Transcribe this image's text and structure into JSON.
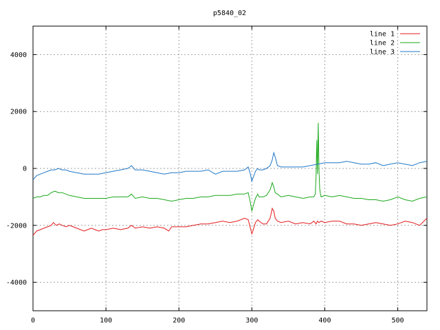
{
  "chart_data": {
    "type": "line",
    "title": "p5840_02",
    "xlabel": "",
    "ylabel": "",
    "xlim": [
      0,
      540
    ],
    "ylim": [
      -5000,
      5000
    ],
    "x_ticks": [
      0,
      100,
      200,
      300,
      400,
      500
    ],
    "y_ticks": [
      -4000,
      -2000,
      0,
      2000,
      4000
    ],
    "grid": true,
    "legend_position": "top-right",
    "colors": {
      "line 1": "#e41a1c",
      "line 2": "#1aa81a",
      "line 3": "#1f77c8"
    },
    "series": [
      {
        "name": "line 1",
        "color": "#e41a1c",
        "x": [
          0,
          5,
          10,
          15,
          20,
          25,
          28,
          32,
          36,
          40,
          45,
          50,
          55,
          60,
          65,
          70,
          75,
          80,
          85,
          90,
          95,
          100,
          110,
          120,
          130,
          135,
          140,
          150,
          160,
          170,
          180,
          186,
          190,
          200,
          210,
          220,
          230,
          240,
          250,
          260,
          270,
          280,
          290,
          295,
          298,
          300,
          302,
          305,
          308,
          310,
          315,
          320,
          325,
          328,
          330,
          332,
          335,
          340,
          350,
          360,
          370,
          380,
          385,
          388,
          390,
          392,
          395,
          400,
          410,
          420,
          430,
          440,
          450,
          460,
          470,
          480,
          490,
          500,
          510,
          520,
          530,
          540
        ],
        "y": [
          -2350,
          -2200,
          -2150,
          -2100,
          -2050,
          -2000,
          -1900,
          -2000,
          -1950,
          -2000,
          -2050,
          -2000,
          -2050,
          -2100,
          -2150,
          -2200,
          -2150,
          -2100,
          -2150,
          -2200,
          -2150,
          -2150,
          -2100,
          -2150,
          -2100,
          -2000,
          -2100,
          -2050,
          -2100,
          -2050,
          -2100,
          -2200,
          -2050,
          -2050,
          -2050,
          -2000,
          -1950,
          -1950,
          -1900,
          -1850,
          -1900,
          -1850,
          -1750,
          -1800,
          -2100,
          -2300,
          -2150,
          -1900,
          -1800,
          -1850,
          -1950,
          -1950,
          -1750,
          -1400,
          -1500,
          -1750,
          -1850,
          -1900,
          -1850,
          -1950,
          -1900,
          -1950,
          -1850,
          -1950,
          -1850,
          -1900,
          -1850,
          -1900,
          -1850,
          -1850,
          -1950,
          -1950,
          -2000,
          -1950,
          -1900,
          -1950,
          -2000,
          -1950,
          -1850,
          -1900,
          -2000,
          -1750
        ]
      },
      {
        "name": "line 2",
        "color": "#1aa81a",
        "x": [
          0,
          5,
          10,
          15,
          20,
          25,
          30,
          35,
          40,
          45,
          50,
          60,
          70,
          80,
          90,
          100,
          110,
          120,
          130,
          135,
          140,
          150,
          160,
          170,
          180,
          190,
          200,
          210,
          220,
          230,
          240,
          250,
          260,
          270,
          280,
          290,
          295,
          298,
          300,
          302,
          305,
          308,
          310,
          315,
          320,
          325,
          328,
          330,
          332,
          335,
          340,
          350,
          360,
          370,
          380,
          385,
          387,
          388,
          389,
          390,
          391,
          392,
          393,
          394,
          395,
          400,
          410,
          420,
          430,
          440,
          450,
          460,
          470,
          480,
          490,
          500,
          510,
          520,
          530,
          540
        ],
        "y": [
          -1050,
          -1000,
          -1000,
          -950,
          -950,
          -850,
          -800,
          -850,
          -850,
          -900,
          -950,
          -1000,
          -1050,
          -1050,
          -1050,
          -1050,
          -1000,
          -1000,
          -1000,
          -900,
          -1050,
          -1000,
          -1050,
          -1050,
          -1100,
          -1150,
          -1100,
          -1050,
          -1050,
          -1000,
          -1000,
          -950,
          -950,
          -950,
          -900,
          -900,
          -850,
          -1200,
          -1500,
          -1300,
          -1050,
          -900,
          -1000,
          -1000,
          -950,
          -750,
          -500,
          -650,
          -850,
          -900,
          -1000,
          -950,
          -1000,
          -1050,
          -1000,
          -1000,
          -900,
          -300,
          1000,
          -200,
          1600,
          -50,
          -700,
          -900,
          -1000,
          -950,
          -1000,
          -950,
          -1000,
          -1050,
          -1050,
          -1100,
          -1100,
          -1150,
          -1100,
          -1000,
          -1100,
          -1150,
          -1050,
          -1000
        ]
      },
      {
        "name": "line 3",
        "color": "#1f77c8",
        "x": [
          0,
          5,
          10,
          15,
          20,
          25,
          30,
          35,
          40,
          45,
          50,
          60,
          70,
          80,
          90,
          100,
          110,
          120,
          130,
          135,
          140,
          150,
          160,
          170,
          180,
          190,
          200,
          210,
          220,
          230,
          240,
          250,
          260,
          270,
          280,
          290,
          295,
          298,
          300,
          302,
          305,
          308,
          310,
          315,
          320,
          325,
          328,
          330,
          332,
          335,
          340,
          350,
          360,
          370,
          380,
          390,
          400,
          410,
          420,
          430,
          440,
          450,
          460,
          470,
          480,
          490,
          500,
          510,
          520,
          530,
          540
        ],
        "y": [
          -400,
          -250,
          -200,
          -150,
          -100,
          -50,
          -50,
          0,
          -50,
          -50,
          -100,
          -150,
          -200,
          -200,
          -200,
          -150,
          -100,
          -50,
          0,
          100,
          -50,
          -50,
          -100,
          -150,
          -200,
          -150,
          -150,
          -100,
          -100,
          -100,
          -50,
          -200,
          -100,
          -100,
          -100,
          -50,
          50,
          -200,
          -450,
          -300,
          -100,
          0,
          -50,
          -50,
          0,
          100,
          300,
          550,
          400,
          100,
          50,
          50,
          50,
          50,
          100,
          150,
          200,
          200,
          200,
          250,
          200,
          150,
          150,
          200,
          100,
          150,
          200,
          150,
          100,
          200,
          250
        ]
      }
    ]
  }
}
